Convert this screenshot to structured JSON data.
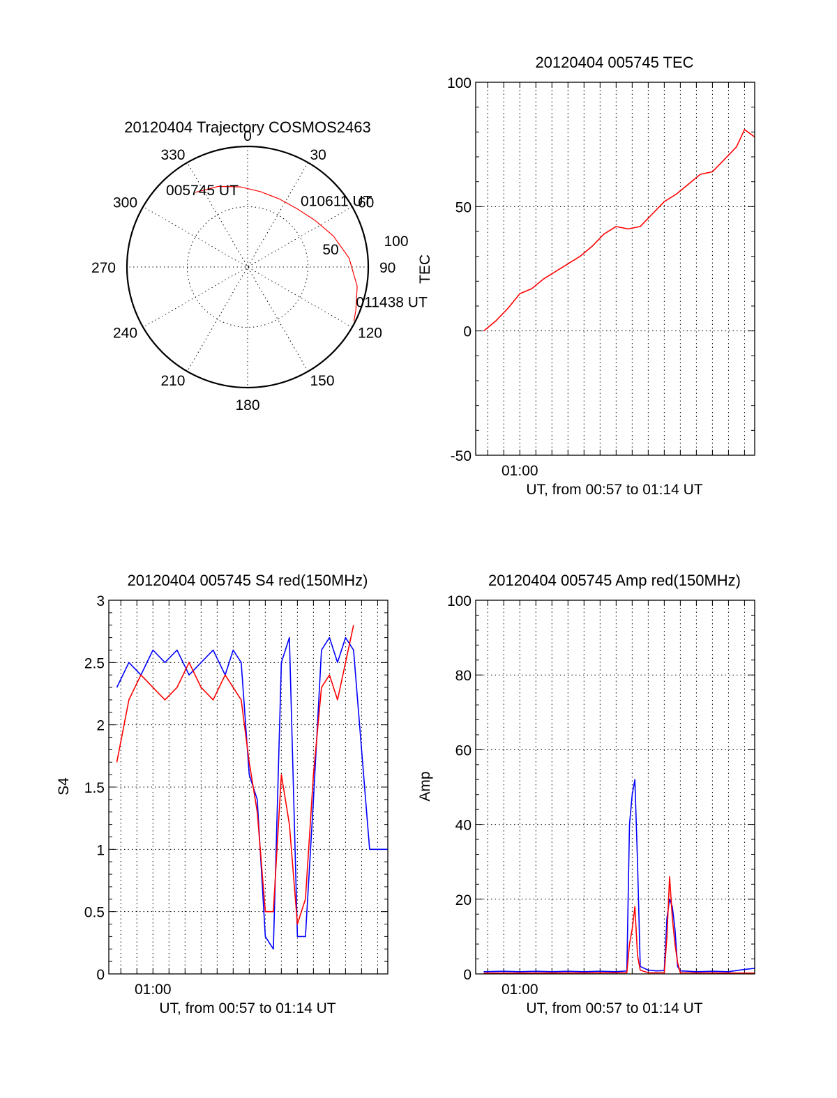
{
  "colors": {
    "red": "#ff0000",
    "blue": "#0000ff",
    "axis": "#000000",
    "background": "#ffffff"
  },
  "chart_data": [
    {
      "type": "polar",
      "title": "20120404 Trajectory COSMOS2463",
      "azimuth_labels": [
        "0",
        "30",
        "60",
        "90",
        "120",
        "150",
        "180",
        "210",
        "240",
        "270",
        "300",
        "330"
      ],
      "radial_labels": [
        "50",
        "100"
      ],
      "grid": true,
      "series": [
        {
          "color": "red",
          "points": [
            {
              "az": 325,
              "el": 22
            },
            {
              "az": 340,
              "el": 26
            },
            {
              "az": 355,
              "el": 30
            },
            {
              "az": 10,
              "el": 33
            },
            {
              "az": 25,
              "el": 34
            },
            {
              "az": 40,
              "el": 33
            },
            {
              "az": 55,
              "el": 29
            },
            {
              "az": 70,
              "el": 22
            },
            {
              "az": 85,
              "el": 14
            },
            {
              "az": 100,
              "el": 7
            },
            {
              "az": 112,
              "el": 3
            },
            {
              "az": 117,
              "el": 1
            }
          ]
        }
      ],
      "annotations": [
        {
          "text": "005745 UT",
          "az": 325,
          "el": 22
        },
        {
          "text": "010611 UT",
          "az": 55,
          "el": 29
        },
        {
          "text": "011438 UT",
          "az": 117,
          "el": 1
        }
      ]
    },
    {
      "type": "line",
      "title": "20120404 005745 TEC",
      "xlabel": "UT, from 00:57 to 01:14 UT",
      "ylabel": "TEC",
      "xlim": [
        "00:57:15",
        "01:14:38"
      ],
      "ylim": [
        -50,
        100
      ],
      "yticks": [
        "100",
        "50",
        "0",
        "-50"
      ],
      "xtick_label": "01:00",
      "grid": true,
      "series": [
        {
          "color": "red",
          "x": [
            "00:57:45",
            "00:58:30",
            "00:59:15",
            "01:00:00",
            "01:00:45",
            "01:01:30",
            "01:02:15",
            "01:03:00",
            "01:03:45",
            "01:04:30",
            "01:05:15",
            "01:06:00",
            "01:06:45",
            "01:07:30",
            "01:08:15",
            "01:09:00",
            "01:09:45",
            "01:10:30",
            "01:11:15",
            "01:12:00",
            "01:12:45",
            "01:13:30",
            "01:14:00",
            "01:14:38"
          ],
          "y": [
            0,
            4,
            9,
            15,
            17,
            21,
            24,
            27,
            30,
            34,
            39,
            42,
            41,
            42,
            47,
            52,
            55,
            59,
            63,
            64,
            69,
            74,
            81,
            78
          ]
        }
      ]
    },
    {
      "type": "line",
      "title": "20120404 005745 S4 red(150MHz)",
      "xlabel": "UT, from 00:57 to 01:14 UT",
      "ylabel": "S4",
      "xlim": [
        "00:57:15",
        "01:14:38"
      ],
      "ylim": [
        0,
        3
      ],
      "yticks": [
        "3",
        "2.5",
        "2",
        "1.5",
        "1",
        "0.5",
        "0"
      ],
      "xtick_label": "01:00",
      "grid": true,
      "series": [
        {
          "color": "blue",
          "x": [
            "00:57:45",
            "00:58:30",
            "00:59:15",
            "01:00:00",
            "01:00:45",
            "01:01:30",
            "01:02:15",
            "01:03:00",
            "01:03:45",
            "01:04:30",
            "01:05:00",
            "01:05:30",
            "01:06:00",
            "01:06:30",
            "01:07:00",
            "01:07:30",
            "01:08:00",
            "01:08:30",
            "01:09:00",
            "01:09:30",
            "01:10:00",
            "01:10:30",
            "01:11:00",
            "01:11:30",
            "01:12:00",
            "01:12:30",
            "01:13:30",
            "01:14:38"
          ],
          "y": [
            2.3,
            2.5,
            2.4,
            2.6,
            2.5,
            2.6,
            2.4,
            2.5,
            2.6,
            2.4,
            2.6,
            2.5,
            1.6,
            1.4,
            0.3,
            0.2,
            2.5,
            2.7,
            0.3,
            0.3,
            1.4,
            2.6,
            2.7,
            2.5,
            2.7,
            2.6,
            1.0,
            1.0
          ]
        },
        {
          "color": "red",
          "x": [
            "00:57:45",
            "00:58:30",
            "00:59:15",
            "01:00:00",
            "01:00:45",
            "01:01:30",
            "01:02:15",
            "01:03:00",
            "01:03:45",
            "01:04:30",
            "01:05:00",
            "01:05:30",
            "01:06:00",
            "01:06:30",
            "01:07:00",
            "01:07:30",
            "01:08:00",
            "01:08:30",
            "01:09:00",
            "01:09:30",
            "01:10:00",
            "01:10:30",
            "01:11:00",
            "01:11:30",
            "01:12:00",
            "01:12:30"
          ],
          "y": [
            1.7,
            2.2,
            2.4,
            2.3,
            2.2,
            2.3,
            2.5,
            2.3,
            2.2,
            2.4,
            2.3,
            2.2,
            1.7,
            1.3,
            0.5,
            0.5,
            1.6,
            1.2,
            0.4,
            0.6,
            1.6,
            2.3,
            2.4,
            2.2,
            2.5,
            2.8
          ]
        }
      ]
    },
    {
      "type": "line",
      "title": "20120404 005745 Amp red(150MHz)",
      "xlabel": "UT, from 00:57 to 01:14 UT",
      "ylabel": "Amp",
      "xlim": [
        "00:57:15",
        "01:14:38"
      ],
      "ylim": [
        0,
        100
      ],
      "yticks": [
        "100",
        "80",
        "60",
        "40",
        "20",
        "0"
      ],
      "xtick_label": "01:00",
      "grid": true,
      "series": [
        {
          "color": "blue",
          "x": [
            "00:57:45",
            "00:59:00",
            "01:00:00",
            "01:01:00",
            "01:02:00",
            "01:03:00",
            "01:04:00",
            "01:05:00",
            "01:06:00",
            "01:06:40",
            "01:06:50",
            "01:07:00",
            "01:07:10",
            "01:07:20",
            "01:07:30",
            "01:08:00",
            "01:08:30",
            "01:09:00",
            "01:09:10",
            "01:09:20",
            "01:09:30",
            "01:09:40",
            "01:09:50",
            "01:10:00",
            "01:10:30",
            "01:11:00",
            "01:12:00",
            "01:13:00",
            "01:14:00",
            "01:14:38"
          ],
          "y": [
            0.6,
            0.7,
            0.6,
            0.7,
            0.6,
            0.7,
            0.6,
            0.7,
            0.6,
            0.8,
            40,
            48,
            52,
            30,
            2,
            1,
            0.8,
            0.9,
            15,
            20,
            18,
            12,
            2,
            0.8,
            0.7,
            0.6,
            0.7,
            0.6,
            1.2,
            1.5
          ]
        },
        {
          "color": "red",
          "x": [
            "00:57:45",
            "01:06:40",
            "01:06:50",
            "01:07:00",
            "01:07:10",
            "01:07:20",
            "01:07:30",
            "01:08:00",
            "01:09:00",
            "01:09:10",
            "01:09:20",
            "01:09:30",
            "01:09:40",
            "01:09:50",
            "01:10:00",
            "01:14:38"
          ],
          "y": [
            0.2,
            0.3,
            8,
            12,
            18,
            5,
            1,
            0.3,
            0.3,
            10,
            26,
            15,
            8,
            3,
            0.3,
            0.2
          ]
        }
      ]
    }
  ]
}
